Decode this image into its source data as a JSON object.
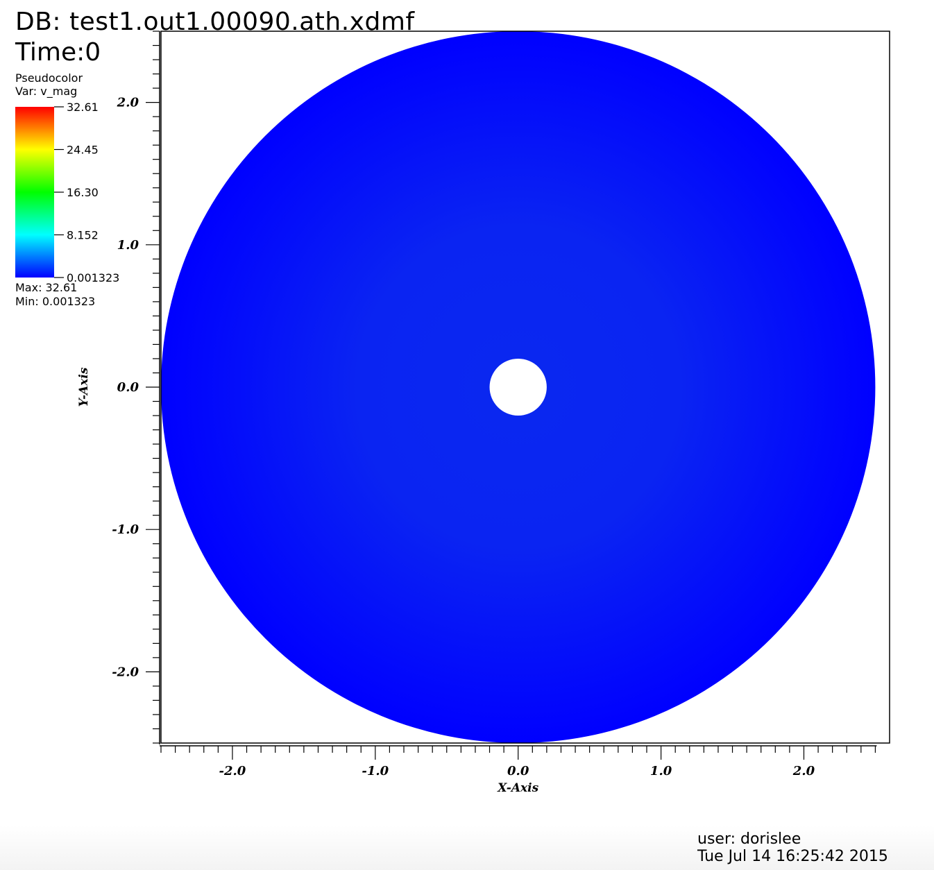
{
  "header": {
    "db": "DB: test1.out1.00090.ath.xdmf",
    "time": "Time:0"
  },
  "legend": {
    "plot_type": "Pseudocolor",
    "var": "Var: v_mag",
    "tick_labels": [
      "32.61",
      "24.45",
      "16.30",
      "8.152",
      "0.001323"
    ],
    "max_label": "Max:  32.61",
    "min_label": "Min:  0.001323",
    "colormap": [
      "#ff0000",
      "#ffff00",
      "#00ff00",
      "#00ffff",
      "#0000ff"
    ]
  },
  "footer": {
    "user": "user: dorislee",
    "date": "Tue Jul 14 16:25:42 2015"
  },
  "chart_data": {
    "type": "heatmap",
    "subtype": "pseudocolor-annulus",
    "title": "",
    "xlabel": "X-Axis",
    "ylabel": "Y-Axis",
    "xlim": [
      -2.5,
      2.6
    ],
    "ylim": [
      -2.5,
      2.5
    ],
    "x_ticks": [
      -2.0,
      -1.0,
      0.0,
      1.0,
      2.0
    ],
    "x_tick_labels": [
      "-2.0",
      "-1.0",
      "0.0",
      "1.0",
      "2.0"
    ],
    "y_ticks": [
      2.0,
      1.0,
      0.0,
      -1.0,
      -2.0
    ],
    "y_tick_labels": [
      "2.0",
      "1.0",
      "0.0",
      "-1.0",
      "-2.0"
    ],
    "minor_tick_step": 0.1,
    "annulus": {
      "center": [
        0.0,
        0.0
      ],
      "inner_radius": 0.2,
      "outer_radius": 2.5
    },
    "variable": "v_mag",
    "value_range": [
      0.001323,
      32.61
    ],
    "dominant_color": "#0000ff",
    "inner_highlight_color": "#0a28f0",
    "grid": false,
    "legend": "top-left"
  }
}
